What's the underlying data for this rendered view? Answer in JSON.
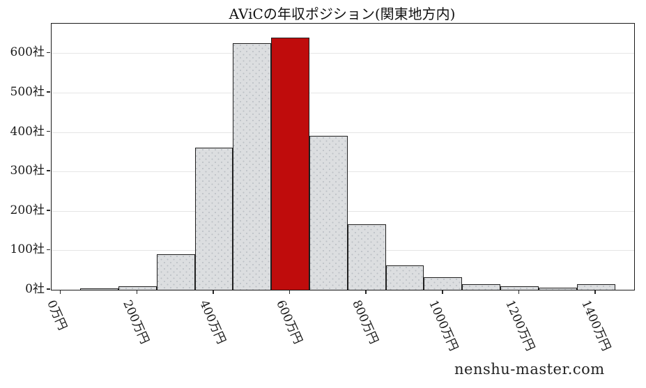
{
  "page": {
    "title": "AViCの年収ポジション(関東地方内)",
    "watermark": "nenshu-master.com"
  },
  "chart_data": {
    "type": "bar",
    "subtype": "histogram",
    "title": "AViCの年収ポジション(関東地方内)",
    "xlabel": "",
    "ylabel": "",
    "unit_x": "万円",
    "unit_y": "社",
    "bin_width": 100,
    "bin_centers": [
      100,
      200,
      300,
      400,
      500,
      600,
      700,
      800,
      900,
      1000,
      1100,
      1200,
      1300,
      1400
    ],
    "values": [
      2,
      8,
      90,
      360,
      625,
      640,
      391,
      167,
      61,
      31,
      15,
      8,
      5,
      15
    ],
    "highlight_index": 5,
    "highlight_bin_label": "600万円",
    "x_ticks": [
      {
        "value": 0,
        "label": "0万円"
      },
      {
        "value": 200,
        "label": "200万円"
      },
      {
        "value": 400,
        "label": "400万円"
      },
      {
        "value": 600,
        "label": "600万円"
      },
      {
        "value": 800,
        "label": "800万円"
      },
      {
        "value": 1000,
        "label": "1000万円"
      },
      {
        "value": 1200,
        "label": "1200万円"
      },
      {
        "value": 1400,
        "label": "1400万円"
      }
    ],
    "y_ticks": [
      {
        "value": 0,
        "label": "0社"
      },
      {
        "value": 100,
        "label": "100社"
      },
      {
        "value": 200,
        "label": "200社"
      },
      {
        "value": 300,
        "label": "300社"
      },
      {
        "value": 400,
        "label": "400社"
      },
      {
        "value": 500,
        "label": "500社"
      },
      {
        "value": 600,
        "label": "600社"
      }
    ],
    "xlim": [
      -25,
      1500
    ],
    "ylim": [
      0,
      675
    ],
    "grid": "horizontal-only",
    "legend": "none",
    "colors": {
      "bar_fill": "#dcdee0",
      "bar_dot": "#bcc0c5",
      "bar_edge": "#1f1f1f",
      "highlight_fill": "#bf0c0c",
      "gridline": "#e5e5e5",
      "axis": "#1a1a1a",
      "text": "#1a1a1a",
      "background": "#ffffff"
    }
  }
}
